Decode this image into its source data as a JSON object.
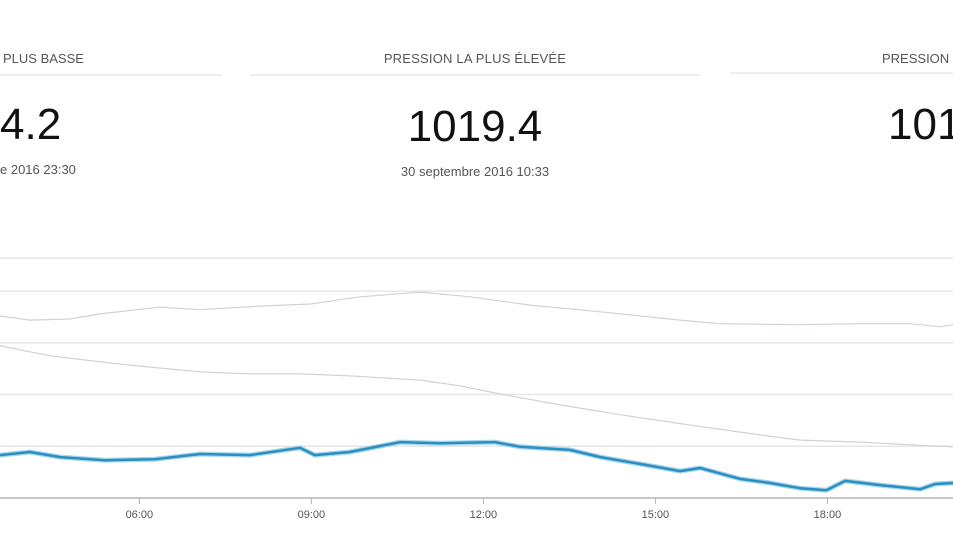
{
  "stats": {
    "lowest": {
      "label": "PLUS BASSE",
      "value": "4.2",
      "date": "e 2016 23:30"
    },
    "highest": {
      "label": "PRESSION LA PLUS ÉLEVÉE",
      "value": "1019.4",
      "date": "30 septembre 2016 10:33"
    },
    "third": {
      "label": "PRESSION",
      "value": "101"
    }
  },
  "chart_data": {
    "type": "line",
    "title": "",
    "xlabel": "",
    "ylabel": "",
    "x_unit": "hours",
    "xlim": [
      3.57,
      20.19
    ],
    "ylim": [
      1014,
      1018.64
    ],
    "yticks": [
      1014,
      1015,
      1016,
      1017,
      1018
    ],
    "xticks": [
      {
        "value": 6,
        "label": "06:00"
      },
      {
        "value": 9,
        "label": "09:00"
      },
      {
        "value": 12,
        "label": "12:00"
      },
      {
        "value": 15,
        "label": "15:00"
      },
      {
        "value": 18,
        "label": "18:00"
      }
    ],
    "grid": true,
    "series": [
      {
        "name": "gray-upper",
        "color": "#d9cfd2",
        "x": [
          3.57,
          4.09,
          4.79,
          5.31,
          6.36,
          7.06,
          8.1,
          8.98,
          9.85,
          10.9,
          11.77,
          12.81,
          14.04,
          15.43,
          16.13,
          17.52,
          18.57,
          19.44,
          19.97,
          20.19
        ],
        "y": [
          1017.52,
          1017.44,
          1017.46,
          1017.56,
          1017.69,
          1017.64,
          1017.71,
          1017.75,
          1017.89,
          1017.98,
          1017.89,
          1017.73,
          1017.6,
          1017.44,
          1017.37,
          1017.35,
          1017.37,
          1017.37,
          1017.31,
          1017.35
        ]
      },
      {
        "name": "gray-lower",
        "color": "#d6d0d2",
        "x": [
          3.57,
          4.44,
          5.49,
          6.19,
          7.06,
          7.93,
          8.8,
          9.67,
          10.9,
          11.59,
          12.29,
          13.34,
          14.38,
          15.61,
          16.83,
          17.52,
          18.57,
          19.79,
          20.19
        ],
        "y": [
          1016.94,
          1016.75,
          1016.61,
          1016.53,
          1016.44,
          1016.4,
          1016.4,
          1016.36,
          1016.28,
          1016.17,
          1016.01,
          1015.8,
          1015.61,
          1015.41,
          1015.22,
          1015.12,
          1015.08,
          1015.01,
          1014.99
        ]
      },
      {
        "name": "pressure",
        "color": "#2a8fc0",
        "x": [
          3.57,
          4.09,
          4.62,
          5.4,
          6.27,
          7.06,
          7.93,
          8.8,
          9.06,
          9.67,
          10.55,
          11.24,
          12.2,
          12.64,
          13.51,
          14.04,
          14.73,
          15.43,
          15.78,
          16.48,
          17.0,
          17.52,
          17.98,
          18.31,
          18.92,
          19.62,
          19.88,
          20.19
        ],
        "y": [
          1014.83,
          1014.89,
          1014.79,
          1014.73,
          1014.75,
          1014.85,
          1014.83,
          1014.97,
          1014.83,
          1014.89,
          1015.08,
          1015.06,
          1015.08,
          1014.99,
          1014.93,
          1014.79,
          1014.66,
          1014.52,
          1014.58,
          1014.37,
          1014.29,
          1014.19,
          1014.15,
          1014.33,
          1014.25,
          1014.17,
          1014.27,
          1014.29
        ]
      }
    ]
  }
}
